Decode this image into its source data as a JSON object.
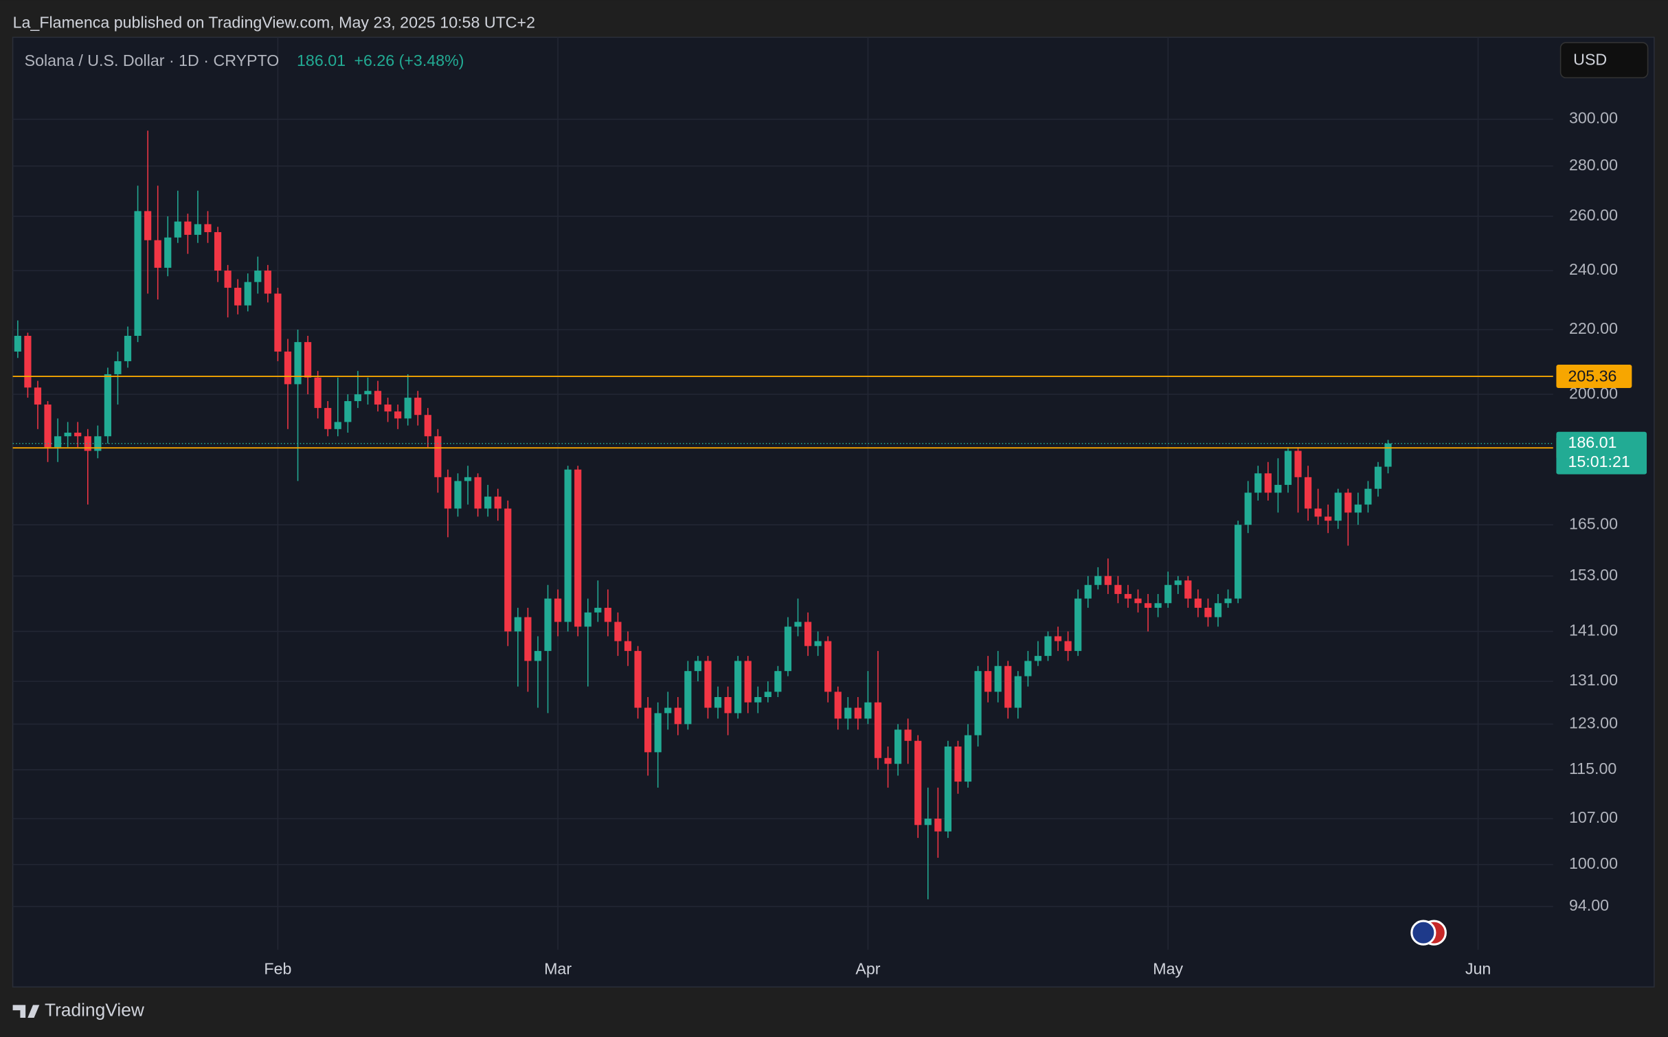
{
  "header": {
    "publisher": "La_Flamenca published on TradingView.com, May 23, 2025 10:58 UTC+2",
    "footer": "TradingView"
  },
  "chart_data": {
    "type": "candlestick",
    "title": "Solana / U.S. Dollar · 1D · CRYPTO",
    "last_price": 186.01,
    "change": "+6.26 (+3.48%)",
    "countdown": "15:01:21",
    "currency": "USD",
    "log_scale": true,
    "grid": true,
    "up_color": "#22ab94",
    "down_color": "#f23645",
    "ylim": [
      88.2,
      338.5
    ],
    "yticks": [
      {
        "value": 94,
        "label": "94.00"
      },
      {
        "value": 100,
        "label": "100.00"
      },
      {
        "value": 107,
        "label": "107.00"
      },
      {
        "value": 115,
        "label": "115.00"
      },
      {
        "value": 123,
        "label": "123.00"
      },
      {
        "value": 131,
        "label": "131.00"
      },
      {
        "value": 141,
        "label": "141.00"
      },
      {
        "value": 153,
        "label": "153.00"
      },
      {
        "value": 165,
        "label": "165.00"
      },
      {
        "value": 200,
        "label": "200.00"
      },
      {
        "value": 220,
        "label": "220.00"
      },
      {
        "value": 240,
        "label": "240.00"
      },
      {
        "value": 260,
        "label": "260.00"
      },
      {
        "value": 280,
        "label": "280.00"
      },
      {
        "value": 300,
        "label": "300.00"
      }
    ],
    "hlines": [
      {
        "value": 205.36,
        "color": "#f7a600"
      },
      {
        "value": 184.81,
        "color": "#f7a600"
      }
    ],
    "categories": [
      null,
      null,
      null,
      null,
      null,
      null,
      null,
      null,
      null,
      null,
      null,
      null,
      null,
      null,
      null,
      null,
      null,
      null,
      null,
      null,
      null,
      null,
      null,
      null,
      null,
      null,
      "Feb",
      null,
      null,
      null,
      null,
      null,
      null,
      null,
      null,
      null,
      null,
      null,
      null,
      null,
      null,
      null,
      null,
      null,
      null,
      null,
      null,
      null,
      null,
      null,
      null,
      null,
      null,
      null,
      "Mar",
      null,
      null,
      null,
      null,
      null,
      null,
      null,
      null,
      null,
      null,
      null,
      null,
      null,
      null,
      null,
      null,
      null,
      null,
      null,
      null,
      null,
      null,
      null,
      null,
      null,
      null,
      null,
      null,
      null,
      null,
      "Apr",
      null,
      null,
      null,
      null,
      null,
      null,
      null,
      null,
      null,
      null,
      null,
      null,
      null,
      null,
      null,
      null,
      null,
      null,
      null,
      null,
      null,
      null,
      null,
      null,
      null,
      null,
      null,
      null,
      null,
      "May",
      null,
      null,
      null,
      null,
      null,
      null,
      null,
      null,
      null,
      null,
      null,
      null,
      null,
      null,
      null,
      null,
      null,
      null,
      null,
      null,
      null,
      null,
      null,
      null,
      null,
      null,
      null,
      null,
      null,
      null,
      "Jun",
      null,
      null,
      null,
      null,
      null,
      null,
      null
    ],
    "open": [
      213,
      218,
      202,
      197,
      185,
      188,
      189,
      188,
      184,
      188,
      206,
      210,
      218,
      262,
      251,
      241,
      252,
      258,
      253,
      257,
      254,
      240,
      234,
      228,
      236,
      240,
      232,
      213,
      203,
      216,
      205,
      196,
      190,
      192,
      198,
      200,
      201,
      197,
      195,
      193,
      199,
      194,
      188,
      177,
      169,
      176,
      177,
      169,
      172,
      169,
      141,
      144,
      135,
      137,
      148,
      143,
      179,
      142,
      145,
      146,
      143,
      139,
      137,
      126,
      118,
      125,
      126,
      123,
      133,
      135,
      126,
      128,
      125,
      135,
      127,
      128,
      129,
      133,
      142,
      143,
      138,
      139,
      129,
      124,
      126,
      124,
      127,
      117,
      116,
      122,
      120,
      106,
      107,
      105,
      119,
      113,
      121,
      133,
      129,
      134,
      126,
      132,
      135,
      136,
      140,
      139,
      137,
      148,
      151,
      153,
      151,
      149,
      148,
      147,
      146,
      147,
      151,
      152,
      148,
      146,
      144,
      147,
      148,
      165,
      173,
      178,
      173,
      175,
      184,
      177,
      169,
      167,
      166,
      173,
      168,
      170,
      174,
      179.75,
      null,
      null,
      null,
      null,
      null,
      null,
      null,
      null,
      null,
      null,
      null,
      null,
      null,
      null,
      null,
      null
    ],
    "high": [
      223,
      219,
      204,
      198,
      193,
      192,
      192,
      190,
      191,
      208,
      213,
      221,
      272,
      295,
      272,
      260,
      270,
      261,
      270,
      262,
      256,
      242,
      237,
      239,
      245,
      242,
      234,
      217,
      220,
      218,
      207,
      198,
      205,
      200,
      207,
      205,
      204,
      199,
      197,
      206,
      201,
      196,
      190,
      179,
      178,
      180,
      178,
      175,
      174,
      171,
      146,
      146,
      140,
      151,
      150,
      180,
      180,
      148,
      152,
      150,
      145,
      141,
      138,
      128,
      127,
      129,
      128,
      135,
      136,
      136,
      130,
      130,
      136,
      136,
      130,
      131,
      134,
      144,
      148,
      145,
      141,
      140,
      130,
      128,
      128,
      133,
      137,
      119,
      123,
      124,
      121,
      112,
      112,
      120,
      120,
      123,
      134,
      136,
      137,
      135,
      133,
      137,
      139,
      141,
      142,
      141,
      150,
      153,
      155,
      157,
      153,
      151,
      150,
      149,
      149,
      154,
      153,
      153,
      150,
      148,
      149,
      150,
      166,
      176,
      180,
      181,
      182,
      185,
      185,
      180,
      174,
      170,
      174,
      174,
      173,
      176,
      181,
      187,
      null,
      null,
      null,
      null,
      null,
      null,
      null,
      null,
      null,
      null,
      null,
      null,
      null,
      null,
      null,
      null
    ],
    "low": [
      211,
      199,
      190,
      181,
      181,
      185,
      185,
      170,
      182,
      186,
      197,
      208,
      216,
      232,
      230,
      238,
      250,
      246,
      250,
      250,
      236,
      224,
      225,
      226,
      232,
      229,
      210,
      190,
      176,
      200,
      193,
      188,
      188,
      189,
      196,
      197,
      195,
      192,
      190,
      191,
      191,
      185,
      173,
      162,
      167,
      170,
      167,
      167,
      166,
      138,
      130,
      129,
      126,
      125,
      140,
      141,
      140,
      130,
      143,
      140,
      136,
      134,
      124,
      114,
      112,
      122,
      121,
      122,
      131,
      124,
      124,
      121,
      124,
      125,
      125,
      127,
      128,
      132,
      140,
      136,
      136,
      127,
      122,
      122,
      122,
      123,
      115,
      112,
      114,
      116,
      104,
      95,
      101,
      104,
      111,
      112,
      119,
      127,
      127,
      124,
      124,
      130,
      134,
      135,
      137,
      135,
      136,
      146,
      150,
      149,
      147,
      146,
      145,
      141,
      144,
      146,
      149,
      146,
      144,
      142,
      142,
      146,
      147,
      163,
      171,
      171,
      168,
      173,
      168,
      166,
      165,
      163,
      164,
      160,
      165,
      168,
      172,
      178,
      null,
      null,
      null,
      null,
      null,
      null,
      null,
      null,
      null,
      null,
      null,
      null,
      null,
      null,
      null,
      null
    ],
    "close": [
      218,
      202,
      197,
      185,
      188,
      189,
      188,
      184,
      188,
      206,
      210,
      218,
      262,
      251,
      241,
      252,
      258,
      253,
      257,
      254,
      240,
      234,
      228,
      236,
      240,
      232,
      213,
      203,
      216,
      205,
      196,
      190,
      192,
      198,
      200,
      201,
      197,
      195,
      193,
      199,
      194,
      188,
      177,
      169,
      176,
      177,
      169,
      172,
      169,
      141,
      144,
      135,
      137,
      148,
      143,
      179,
      142,
      145,
      146,
      143,
      139,
      137,
      126,
      118,
      125,
      126,
      123,
      133,
      135,
      126,
      128,
      125,
      135,
      127,
      128,
      129,
      133,
      142,
      143,
      138,
      139,
      129,
      124,
      126,
      124,
      127,
      117,
      116,
      122,
      120,
      106,
      107,
      105,
      119,
      113,
      121,
      133,
      129,
      134,
      126,
      132,
      135,
      136,
      140,
      139,
      137,
      148,
      151,
      153,
      151,
      149,
      148,
      147,
      146,
      147,
      151,
      152,
      148,
      146,
      144,
      147,
      148,
      165,
      173,
      178,
      173,
      175,
      184,
      177,
      169,
      167,
      166,
      173,
      168,
      170,
      174,
      179.75,
      186.01,
      null,
      null,
      null,
      null,
      null,
      null,
      null,
      null,
      null,
      null,
      null,
      null,
      null,
      null,
      null,
      null
    ]
  }
}
